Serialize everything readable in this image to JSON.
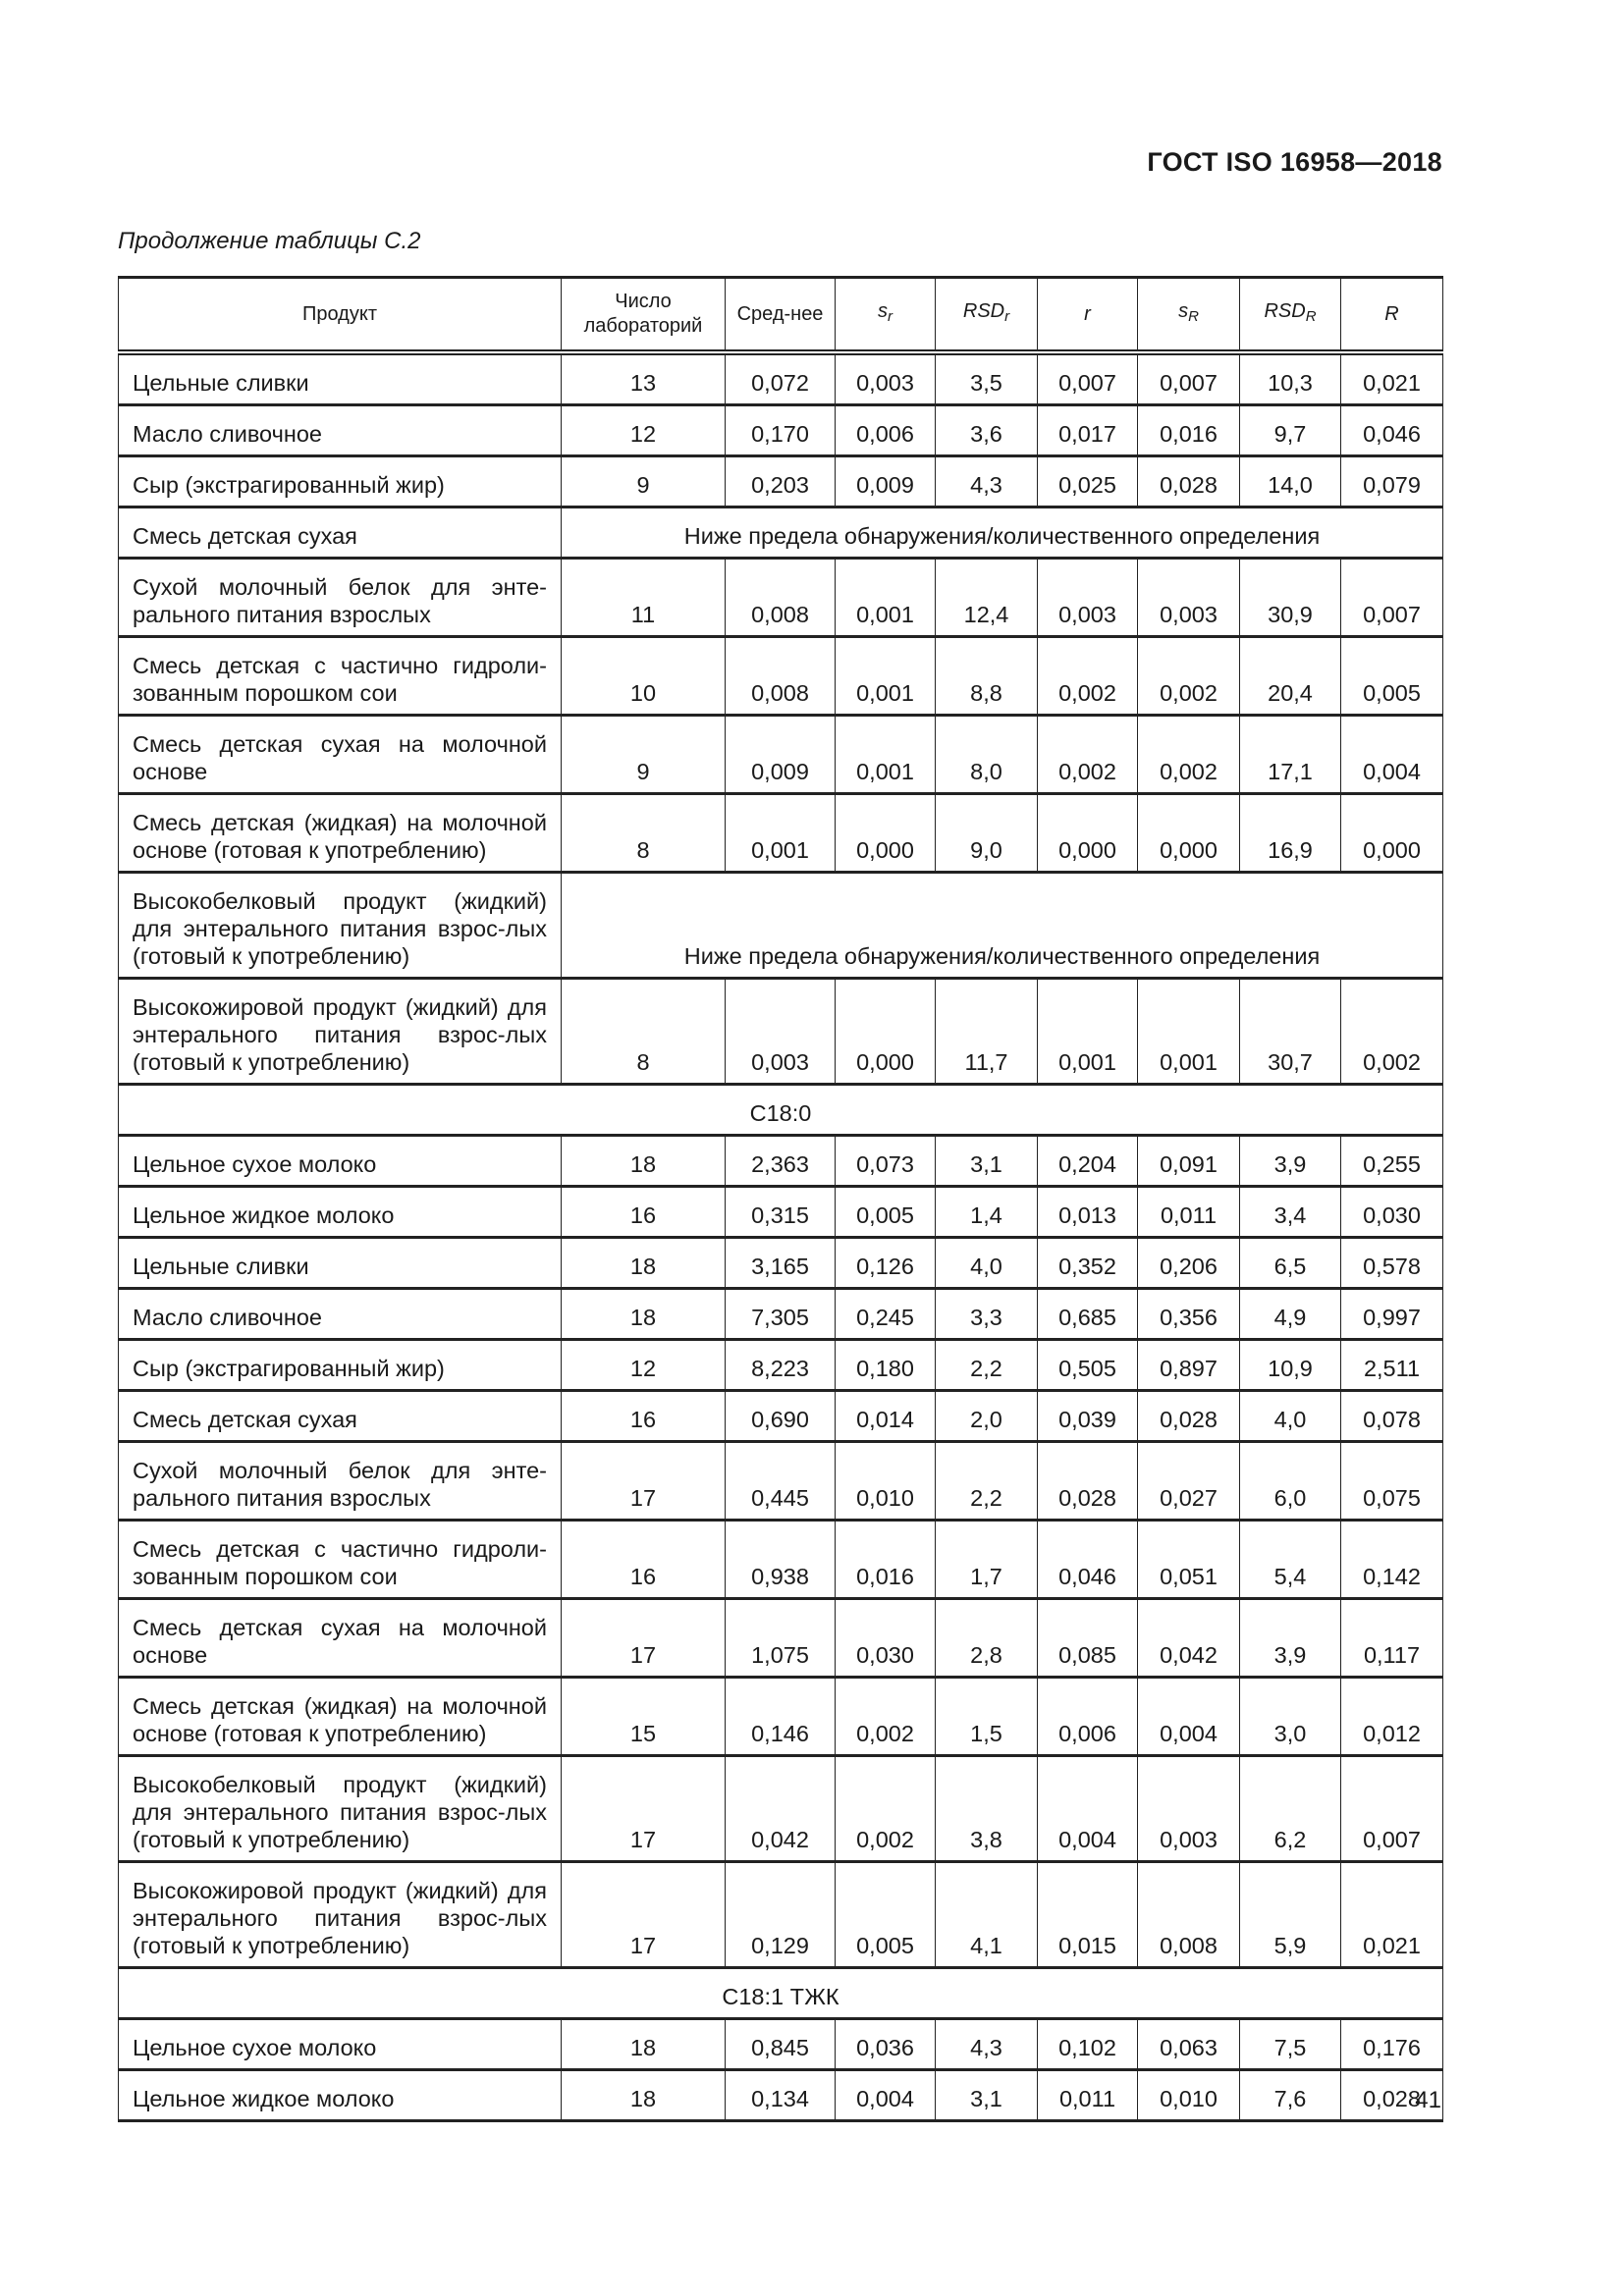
{
  "header": {
    "doc_code": "ГОСТ ISO 16958—2018"
  },
  "caption": "Продолжение таблицы С.2",
  "page_number": "41",
  "table": {
    "columns": [
      {
        "label": "Продукт"
      },
      {
        "label": "Число лабораторий"
      },
      {
        "label": "Сред-нее"
      },
      {
        "label": "s",
        "sub": "r"
      },
      {
        "label": "RSD",
        "sub": "r"
      },
      {
        "label": "r"
      },
      {
        "label": "s",
        "sub": "R"
      },
      {
        "label": "RSD",
        "sub": "R"
      },
      {
        "label": "R"
      }
    ],
    "rows": [
      {
        "type": "data",
        "lines": 1,
        "product": "Цельные сливки",
        "values": [
          "13",
          "0,072",
          "0,003",
          "3,5",
          "0,007",
          "0,007",
          "10,3",
          "0,021"
        ]
      },
      {
        "type": "data",
        "lines": 1,
        "product": "Масло сливочное",
        "values": [
          "12",
          "0,170",
          "0,006",
          "3,6",
          "0,017",
          "0,016",
          "9,7",
          "0,046"
        ]
      },
      {
        "type": "data",
        "lines": 1,
        "product": "Сыр (экстрагированный жир)",
        "values": [
          "9",
          "0,203",
          "0,009",
          "4,3",
          "0,025",
          "0,028",
          "14,0",
          "0,079"
        ]
      },
      {
        "type": "note",
        "lines": 1,
        "product": "Смесь детская сухая",
        "note": "Ниже предела обнаружения/количественного определения"
      },
      {
        "type": "data",
        "lines": 2,
        "product": "Сухой молочный белок для энте-рального питания взрослых",
        "values": [
          "11",
          "0,008",
          "0,001",
          "12,4",
          "0,003",
          "0,003",
          "30,9",
          "0,007"
        ]
      },
      {
        "type": "data",
        "lines": 2,
        "product": "Смесь детская с частично гидроли-зованным порошком сои",
        "values": [
          "10",
          "0,008",
          "0,001",
          "8,8",
          "0,002",
          "0,002",
          "20,4",
          "0,005"
        ]
      },
      {
        "type": "data",
        "lines": 2,
        "product": "Смесь детская сухая на молочной основе",
        "values": [
          "9",
          "0,009",
          "0,001",
          "8,0",
          "0,002",
          "0,002",
          "17,1",
          "0,004"
        ]
      },
      {
        "type": "data",
        "lines": 2,
        "product": "Смесь детская (жидкая) на молочной основе (готовая к употреблению)",
        "values": [
          "8",
          "0,001",
          "0,000",
          "9,0",
          "0,000",
          "0,000",
          "16,9",
          "0,000"
        ]
      },
      {
        "type": "note",
        "lines": 3,
        "product": "Высокобелковый продукт (жидкий) для энтерального питания взрос-лых (готовый к употреблению)",
        "note": "Ниже предела обнаружения/количественного определения"
      },
      {
        "type": "data",
        "lines": 3,
        "product": "Высокожировой продукт (жидкий) для энтерального питания взрос-лых (готовый к употреблению)",
        "values": [
          "8",
          "0,003",
          "0,000",
          "11,7",
          "0,001",
          "0,001",
          "30,7",
          "0,002"
        ]
      },
      {
        "type": "section",
        "label": "С18:0"
      },
      {
        "type": "data",
        "lines": 1,
        "product": "Цельное сухое молоко",
        "values": [
          "18",
          "2,363",
          "0,073",
          "3,1",
          "0,204",
          "0,091",
          "3,9",
          "0,255"
        ]
      },
      {
        "type": "data",
        "lines": 1,
        "product": "Цельное жидкое молоко",
        "values": [
          "16",
          "0,315",
          "0,005",
          "1,4",
          "0,013",
          "0,011",
          "3,4",
          "0,030"
        ]
      },
      {
        "type": "data",
        "lines": 1,
        "product": "Цельные сливки",
        "values": [
          "18",
          "3,165",
          "0,126",
          "4,0",
          "0,352",
          "0,206",
          "6,5",
          "0,578"
        ]
      },
      {
        "type": "data",
        "lines": 1,
        "product": "Масло сливочное",
        "values": [
          "18",
          "7,305",
          "0,245",
          "3,3",
          "0,685",
          "0,356",
          "4,9",
          "0,997"
        ]
      },
      {
        "type": "data",
        "lines": 1,
        "product": "Сыр (экстрагированный жир)",
        "values": [
          "12",
          "8,223",
          "0,180",
          "2,2",
          "0,505",
          "0,897",
          "10,9",
          "2,511"
        ]
      },
      {
        "type": "data",
        "lines": 1,
        "product": "Смесь детская сухая",
        "values": [
          "16",
          "0,690",
          "0,014",
          "2,0",
          "0,039",
          "0,028",
          "4,0",
          "0,078"
        ]
      },
      {
        "type": "data",
        "lines": 2,
        "product": "Сухой молочный белок для энте-рального питания взрослых",
        "values": [
          "17",
          "0,445",
          "0,010",
          "2,2",
          "0,028",
          "0,027",
          "6,0",
          "0,075"
        ]
      },
      {
        "type": "data",
        "lines": 2,
        "product": "Смесь детская с частично гидроли-зованным порошком сои",
        "values": [
          "16",
          "0,938",
          "0,016",
          "1,7",
          "0,046",
          "0,051",
          "5,4",
          "0,142"
        ]
      },
      {
        "type": "data",
        "lines": 2,
        "product": "Смесь детская сухая на молочной основе",
        "values": [
          "17",
          "1,075",
          "0,030",
          "2,8",
          "0,085",
          "0,042",
          "3,9",
          "0,117"
        ]
      },
      {
        "type": "data",
        "lines": 2,
        "product": "Смесь детская (жидкая) на молочной основе (готовая к употреблению)",
        "values": [
          "15",
          "0,146",
          "0,002",
          "1,5",
          "0,006",
          "0,004",
          "3,0",
          "0,012"
        ]
      },
      {
        "type": "data",
        "lines": 3,
        "product": "Высокобелковый продукт (жидкий) для энтерального питания взрос-лых (готовый к употреблению)",
        "values": [
          "17",
          "0,042",
          "0,002",
          "3,8",
          "0,004",
          "0,003",
          "6,2",
          "0,007"
        ]
      },
      {
        "type": "data",
        "lines": 3,
        "product": "Высокожировой продукт (жидкий) для энтерального питания взрос-лых (готовый к употреблению)",
        "values": [
          "17",
          "0,129",
          "0,005",
          "4,1",
          "0,015",
          "0,008",
          "5,9",
          "0,021"
        ]
      },
      {
        "type": "section",
        "label": "С18:1 ТЖК"
      },
      {
        "type": "data",
        "lines": 1,
        "product": "Цельное сухое молоко",
        "values": [
          "18",
          "0,845",
          "0,036",
          "4,3",
          "0,102",
          "0,063",
          "7,5",
          "0,176"
        ]
      },
      {
        "type": "data",
        "lines": 1,
        "product": "Цельное жидкое молоко",
        "values": [
          "18",
          "0,134",
          "0,004",
          "3,1",
          "0,011",
          "0,010",
          "7,6",
          "0,028"
        ]
      }
    ]
  }
}
